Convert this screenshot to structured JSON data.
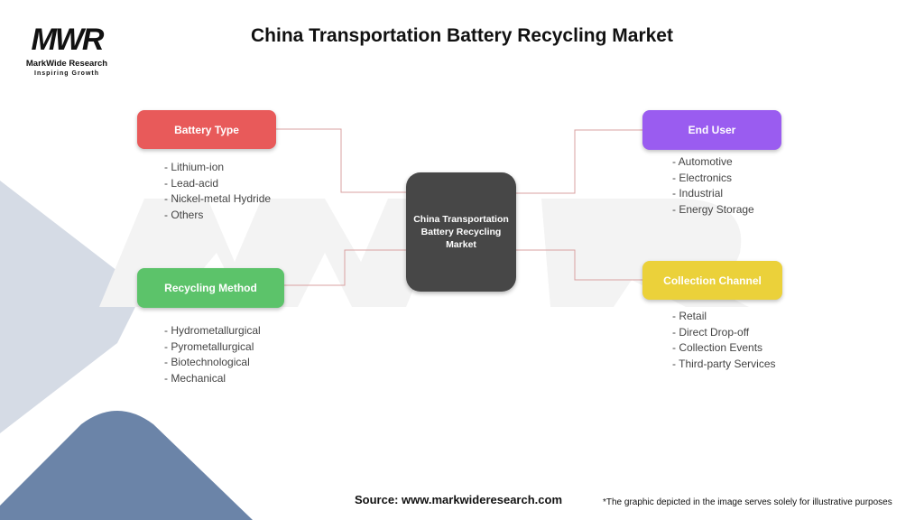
{
  "logo": {
    "mark": "MWR",
    "name": "MarkWide Research",
    "tagline": "Inspiring Growth"
  },
  "title": "China Transportation Battery Recycling Market",
  "center": {
    "label": "China Transportation Battery Recycling Market",
    "color": "#474747"
  },
  "branches": [
    {
      "label": "Battery Type",
      "color": "#e85a5a",
      "items": [
        "Lithium-ion",
        "Lead-acid",
        "Nickel-metal Hydride",
        "Others"
      ]
    },
    {
      "label": "Recycling Method",
      "color": "#5cc36a",
      "items": [
        "Hydrometallurgical",
        "Pyrometallurgical",
        "Biotechnological",
        "Mechanical"
      ]
    },
    {
      "label": "End User",
      "color": "#9a5cf0",
      "items": [
        "Automotive",
        "Electronics",
        "Industrial",
        "Energy Storage"
      ]
    },
    {
      "label": "Collection Channel",
      "color": "#ebd13a",
      "items": [
        "Retail",
        "Direct Drop-off",
        "Collection Events",
        "Third-party Services"
      ]
    }
  ],
  "connector_color": "#d9a0a0",
  "footer": {
    "source": "Source: www.markwideresearch.com",
    "note": "*The graphic depicted in the image serves solely for illustrative purposes"
  }
}
